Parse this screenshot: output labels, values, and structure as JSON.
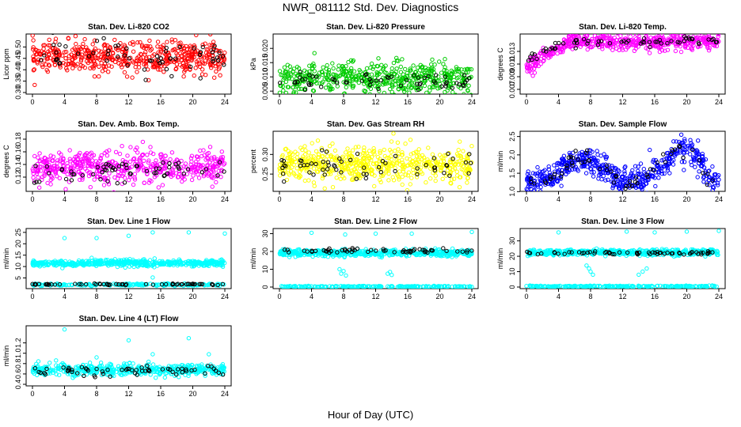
{
  "title": "NWR_081112  Std. Dev. Diagnostics",
  "xlabel": "Hour of Day (UTC)",
  "colors": {
    "axis": "#000000",
    "overlay": "#000000"
  },
  "chart_data": [
    {
      "type": "scatter",
      "title": "Stan. Dev. Li-820 CO2",
      "ylabel": "Licor ppm",
      "color": "#ff0000",
      "xlim": [
        0,
        24
      ],
      "xticks": [
        0,
        4,
        8,
        12,
        16,
        20,
        24
      ],
      "ylim": [
        0.3,
        0.55
      ],
      "yticks": [
        0.3,
        0.35,
        0.4,
        0.45,
        0.5
      ],
      "ytick_labels": [
        "0.30",
        "0.35",
        "0.40",
        "0.45",
        "0.50"
      ],
      "series": [
        {
          "values": {
            "kind": "noise",
            "mean": 0.455,
            "sd": 0.035,
            "n": 520
          }
        },
        {
          "values": {
            "kind": "overlay",
            "mean": 0.455,
            "sd": 0.035,
            "n": 60
          }
        }
      ]
    },
    {
      "type": "scatter",
      "title": "Stan. Dev. Li-820 Pressure",
      "ylabel": "kPa",
      "color": "#00cc00",
      "xlim": [
        0,
        24
      ],
      "xticks": [
        0,
        4,
        8,
        12,
        16,
        20,
        24
      ],
      "ylim": [
        0.0045,
        0.0245
      ],
      "yticks": [
        0.005,
        0.01,
        0.015,
        0.02
      ],
      "ytick_labels": [
        "0.005",
        "0.010",
        "0.015",
        "0.020"
      ],
      "series": [
        {
          "values": {
            "kind": "noise",
            "mean": 0.0095,
            "sd": 0.0028,
            "n": 520
          }
        },
        {
          "values": {
            "kind": "overlay",
            "mean": 0.0085,
            "sd": 0.0015,
            "n": 60
          }
        }
      ]
    },
    {
      "type": "scatter",
      "title": "Stan. Dev. Li-820 Temp.",
      "ylabel": "degrees C",
      "color": "#ff00ff",
      "xlim": [
        0,
        24
      ],
      "xticks": [
        0,
        4,
        8,
        12,
        16,
        20,
        24
      ],
      "ylim": [
        0.0065,
        0.0155
      ],
      "yticks": [
        0.007,
        0.009,
        0.011,
        0.013
      ],
      "ytick_labels": [
        "0.007",
        "0.009",
        "0.011",
        "0.013"
      ],
      "series": [
        {
          "values": {
            "kind": "ramp",
            "start": 0.0105,
            "plateau": 0.0145,
            "rampEnd": 5,
            "sd": 0.0006,
            "n": 520
          }
        },
        {
          "values": {
            "kind": "overlay-ramp",
            "start": 0.0115,
            "plateau": 0.0145,
            "rampEnd": 5,
            "sd": 0.0004,
            "n": 60
          }
        }
      ]
    },
    {
      "type": "scatter",
      "title": "Stan. Dev. Amb. Box Temp.",
      "ylabel": "degrees C",
      "color": "#ff00ff",
      "xlim": [
        0,
        24
      ],
      "xticks": [
        0,
        4,
        8,
        12,
        16,
        20,
        24
      ],
      "ylim": [
        0.1,
        0.19
      ],
      "yticks": [
        0.12,
        0.14,
        0.16,
        0.18
      ],
      "ytick_labels": [
        "0.12",
        "0.14",
        "0.16",
        "0.18"
      ],
      "series": [
        {
          "values": {
            "kind": "noise",
            "mean": 0.135,
            "sd": 0.013,
            "n": 520
          }
        },
        {
          "values": {
            "kind": "overlay",
            "mean": 0.13,
            "sd": 0.01,
            "n": 60
          }
        }
      ]
    },
    {
      "type": "scatter",
      "title": "Stan. Dev. Gas Stream RH",
      "ylabel": "percent",
      "color": "#ffff00",
      "xlim": [
        0,
        24
      ],
      "xticks": [
        0,
        4,
        8,
        12,
        16,
        20,
        24
      ],
      "ylim": [
        0.21,
        0.355
      ],
      "yticks": [
        0.25,
        0.3
      ],
      "ytick_labels": [
        "0.25",
        "0.30"
      ],
      "series": [
        {
          "values": {
            "kind": "noise",
            "mean": 0.275,
            "sd": 0.022,
            "n": 560
          }
        },
        {
          "values": {
            "kind": "overlay",
            "mean": 0.27,
            "sd": 0.018,
            "n": 60
          }
        }
      ]
    },
    {
      "type": "scatter",
      "title": "Stan. Dev. Sample Flow",
      "ylabel": "ml/min",
      "color": "#0000ff",
      "xlim": [
        0,
        24
      ],
      "xticks": [
        0,
        4,
        8,
        12,
        16,
        20,
        24
      ],
      "ylim": [
        1.05,
        2.6
      ],
      "yticks": [
        1.0,
        1.5,
        2.0,
        2.5
      ],
      "ytick_labels": [
        "1.0",
        "1.5",
        "2.0",
        "2.5"
      ],
      "series": [
        {
          "values": {
            "kind": "wave",
            "sd": 0.18,
            "n": 560
          }
        },
        {
          "values": {
            "kind": "overlay-wave",
            "sd": 0.12,
            "n": 60
          }
        }
      ]
    },
    {
      "type": "scatter",
      "title": "Stan. Dev. Line 1 Flow",
      "ylabel": "ml/min",
      "color": "#00ffff",
      "xlim": [
        0,
        24
      ],
      "xticks": [
        0,
        4,
        8,
        12,
        16,
        20,
        24
      ],
      "ylim": [
        1,
        26
      ],
      "yticks": [
        5,
        10,
        15,
        20,
        25
      ],
      "ytick_labels": [
        "5",
        "10",
        "15",
        "20",
        "25"
      ],
      "series": [
        {
          "values": {
            "kind": "band",
            "mean": 11.5,
            "sd": 0.7,
            "n": 520,
            "low": 2,
            "lowsd": 0.25,
            "lown": 200,
            "spikes": [
              [
                4,
                22.5
              ],
              [
                8,
                22.5
              ],
              [
                12,
                23.5
              ],
              [
                15,
                25
              ],
              [
                19.5,
                25
              ],
              [
                24,
                24.5
              ],
              [
                15,
                5.2
              ]
            ]
          }
        },
        {
          "values": {
            "kind": "overlay-low",
            "mean": 2.2,
            "sd": 0.15,
            "n": 60
          }
        }
      ]
    },
    {
      "type": "scatter",
      "title": "Stan. Dev. Line 2 Flow",
      "ylabel": "ml/min",
      "color": "#00ffff",
      "xlim": [
        0,
        24
      ],
      "xticks": [
        0,
        4,
        8,
        12,
        16,
        20,
        24
      ],
      "ylim": [
        0,
        32
      ],
      "yticks": [
        0,
        10,
        20,
        30
      ],
      "ytick_labels": [
        "0",
        "10",
        "20",
        "30"
      ],
      "series": [
        {
          "values": {
            "kind": "band",
            "mean": 19.2,
            "sd": 0.9,
            "n": 520,
            "low": 0.3,
            "lowsd": 0.15,
            "lown": 220,
            "spikes": [
              [
                4,
                30.5
              ],
              [
                7.5,
                10
              ],
              [
                7.7,
                7.5
              ],
              [
                8,
                9
              ],
              [
                8.3,
                6.5
              ],
              [
                13.5,
                7.5
              ],
              [
                13.8,
                8.5
              ],
              [
                14,
                6.8
              ],
              [
                8.2,
                29.5
              ],
              [
                12,
                30
              ],
              [
                16.5,
                30
              ],
              [
                24,
                31
              ]
            ]
          }
        },
        {
          "values": {
            "kind": "overlay",
            "mean": 20.5,
            "sd": 0.6,
            "n": 60
          }
        }
      ]
    },
    {
      "type": "scatter",
      "title": "Stan. Dev. Line 3 Flow",
      "ylabel": "ml/min",
      "color": "#00ffff",
      "xlim": [
        0,
        24
      ],
      "xticks": [
        0,
        4,
        8,
        12,
        16,
        20,
        24
      ],
      "ylim": [
        0,
        37
      ],
      "yticks": [
        0,
        10,
        20,
        30
      ],
      "ytick_labels": [
        "0",
        "10",
        "20",
        "30"
      ],
      "series": [
        {
          "values": {
            "kind": "band",
            "mean": 22.5,
            "sd": 0.9,
            "n": 520,
            "low": 0.5,
            "lowsd": 0.2,
            "lown": 220,
            "spikes": [
              [
                4,
                35.5
              ],
              [
                7.5,
                14
              ],
              [
                7.8,
                12
              ],
              [
                8,
                10
              ],
              [
                8.3,
                8
              ],
              [
                12.5,
                36
              ],
              [
                14,
                8
              ],
              [
                14.5,
                10
              ],
              [
                15,
                12
              ],
              [
                16,
                35.5
              ],
              [
                20,
                36
              ],
              [
                24,
                36.5
              ]
            ]
          }
        },
        {
          "values": {
            "kind": "overlay",
            "mean": 22.2,
            "sd": 0.6,
            "n": 60
          }
        }
      ]
    },
    {
      "type": "scatter",
      "title": "Stan. Dev. Line 4 (LT) Flow",
      "ylabel": "ml/min",
      "color": "#00ffff",
      "xlim": [
        0,
        24
      ],
      "xticks": [
        0,
        4,
        8,
        12,
        16,
        20,
        24
      ],
      "ylim": [
        0.4,
        1.5
      ],
      "yticks": [
        0.4,
        0.6,
        0.8,
        1.0,
        1.2
      ],
      "ytick_labels": [
        "0.4",
        "0.6",
        "0.8",
        "1.0",
        "1.2"
      ],
      "series": [
        {
          "values": {
            "kind": "noise",
            "mean": 0.68,
            "sd": 0.055,
            "n": 480,
            "spikes": [
              [
                4,
                1.46
              ],
              [
                12,
                1.25
              ],
              [
                15,
                0.98
              ],
              [
                19.5,
                1.29
              ],
              [
                22,
                0.98
              ],
              [
                8,
                0.92
              ]
            ]
          }
        },
        {
          "values": {
            "kind": "overlay",
            "mean": 0.66,
            "sd": 0.06,
            "n": 60
          }
        }
      ]
    }
  ]
}
